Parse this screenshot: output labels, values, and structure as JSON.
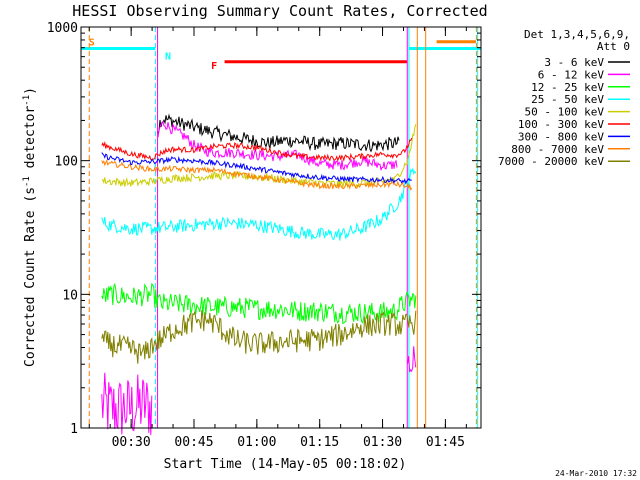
{
  "chart_data": {
    "type": "line",
    "title": "HESSI Observing Summary Count Rates, Corrected",
    "xlabel": "Start Time (14-May-05 00:18:02)",
    "ylabel_main": "Corrected Count Rate (s",
    "ylabel_exp1": "-1",
    "ylabel_mid": " detector",
    "ylabel_exp2": "-1",
    "ylabel_end": ")",
    "x_unit": "minutes after 00:00 UT",
    "xlim": [
      18.03,
      113.5
    ],
    "ylim": [
      1,
      1000
    ],
    "yscale": "log",
    "x_ticks": [
      {
        "value": 30,
        "label": "00:30"
      },
      {
        "value": 45,
        "label": "00:45"
      },
      {
        "value": 60,
        "label": "01:00"
      },
      {
        "value": 75,
        "label": "01:15"
      },
      {
        "value": 90,
        "label": "01:30"
      },
      {
        "value": 105,
        "label": "01:45"
      }
    ],
    "y_ticks": [
      {
        "value": 1,
        "label": "1"
      },
      {
        "value": 10,
        "label": "10"
      },
      {
        "value": 100,
        "label": "100"
      },
      {
        "value": 1000,
        "label": "1000"
      }
    ],
    "legend": {
      "header1": "Det 1,3,4,5,6,9,",
      "header2": "Att 0",
      "position": "right"
    },
    "series": [
      {
        "name": "3 - 6 keV",
        "color": "#000000",
        "noise": 0.05,
        "x": [
          36.4,
          37,
          38,
          40,
          45,
          50,
          55,
          60,
          63,
          67,
          70,
          75,
          80,
          85,
          88,
          90,
          92,
          94
        ],
        "y": [
          170,
          200,
          205,
          198,
          178,
          162,
          150,
          140,
          135,
          142,
          140,
          132,
          135,
          132,
          130,
          132,
          134,
          136
        ]
      },
      {
        "name": "6 - 12 keV",
        "color": "#ff00ff",
        "noise": 0.04,
        "x": [
          36.4,
          37,
          38,
          40,
          43,
          45,
          48,
          50,
          55,
          60,
          65,
          70,
          75,
          80,
          85,
          88,
          90,
          92,
          93.5
        ],
        "y": [
          150,
          185,
          190,
          170,
          150,
          130,
          118,
          115,
          115,
          110,
          108,
          110,
          95,
          93,
          100,
          95,
          92,
          92,
          95
        ]
      },
      {
        "name": "12 - 25 keV",
        "color": "#00ff00",
        "noise": 0.08,
        "x": [
          23,
          25,
          30,
          35,
          37,
          40,
          45,
          50,
          55,
          60,
          65,
          70,
          75,
          80,
          85,
          90,
          93,
          95,
          98
        ],
        "y": [
          9.5,
          10,
          9.5,
          10,
          8.5,
          8.5,
          8.3,
          8.0,
          8.0,
          7.8,
          7.8,
          7.5,
          7.5,
          7.3,
          7.3,
          7.3,
          7.5,
          8.5,
          9.5
        ]
      },
      {
        "name": "25 - 50 keV",
        "color": "#00ffff",
        "noise": 0.05,
        "x": [
          23,
          25,
          30,
          35,
          40,
          45,
          50,
          55,
          60,
          65,
          70,
          75,
          80,
          85,
          90,
          94,
          96,
          98
        ],
        "y": [
          35,
          33,
          31,
          31,
          32,
          33,
          34,
          34,
          33,
          31,
          29,
          28,
          28,
          31,
          37,
          50,
          70,
          90
        ]
      },
      {
        "name": "50 - 100 keV",
        "color": "#cccc00",
        "noise": 0.03,
        "x": [
          23,
          25,
          30,
          35,
          40,
          45,
          50,
          55,
          60,
          65,
          70,
          75,
          80,
          85,
          90,
          93,
          96,
          98
        ],
        "y": [
          71,
          70,
          68,
          70,
          74,
          75,
          77,
          77,
          76,
          73,
          70,
          68,
          67,
          68,
          70,
          72,
          100,
          190
        ]
      },
      {
        "name": "100 - 300 keV",
        "color": "#ff0000",
        "noise": 0.02,
        "x": [
          23,
          25,
          30,
          35,
          38,
          40,
          45,
          50,
          55,
          60,
          65,
          70,
          75,
          80,
          85,
          90,
          93,
          95,
          97
        ],
        "y": [
          132,
          126,
          112,
          105,
          118,
          122,
          120,
          128,
          130,
          125,
          115,
          108,
          105,
          105,
          108,
          112,
          110,
          115,
          145
        ]
      },
      {
        "name": "300 - 800 keV",
        "color": "#0000ff",
        "noise": 0.02,
        "x": [
          23,
          25,
          30,
          35,
          40,
          45,
          50,
          55,
          60,
          65,
          70,
          75,
          80,
          85,
          90,
          93,
          95,
          97
        ],
        "y": [
          110,
          105,
          97,
          98,
          102,
          100,
          96,
          92,
          87,
          82,
          78,
          75,
          73,
          72,
          72,
          71,
          70,
          70
        ]
      },
      {
        "name": "800 - 7000 keV",
        "color": "#ff8000",
        "noise": 0.02,
        "x": [
          23,
          25,
          30,
          35,
          40,
          45,
          50,
          55,
          60,
          65,
          70,
          75,
          80,
          85,
          90,
          93,
          95,
          97
        ],
        "y": [
          98,
          95,
          90,
          86,
          87,
          85,
          85,
          80,
          76,
          72,
          68,
          65,
          64,
          65,
          66,
          67,
          65,
          63
        ]
      },
      {
        "name": "7000 - 20000 keV",
        "color": "#808000",
        "noise": 0.09,
        "x": [
          23,
          25,
          30,
          33,
          35,
          38,
          40,
          45,
          48,
          50,
          55,
          60,
          65,
          70,
          75,
          80,
          85,
          90,
          92,
          95,
          98
        ],
        "y": [
          4.5,
          4.2,
          3.9,
          3.5,
          4.2,
          4.8,
          5.5,
          6.2,
          6.5,
          6.0,
          4.5,
          4.2,
          4.4,
          4.5,
          4.6,
          5.0,
          5.8,
          6.0,
          6.0,
          5.8,
          6.2
        ]
      }
    ],
    "extra_segments": [
      {
        "color": "#ff00ff",
        "noise": 0.25,
        "x": [
          23,
          25,
          30,
          33,
          35
        ],
        "y": [
          1.5,
          1.4,
          1.4,
          1.5,
          1.4
        ]
      },
      {
        "color": "#ff00ff",
        "noise": 0.12,
        "x": [
          96,
          97,
          98
        ],
        "y": [
          3.2,
          2.8,
          3.8
        ]
      }
    ],
    "annotations": [
      {
        "label": "S",
        "color": "#ff8000",
        "x": 20.6,
        "y": 780
      },
      {
        "label": "N",
        "color": "#00ffff",
        "x": 38.8,
        "y": 610
      },
      {
        "label": "F",
        "color": "#ff0000",
        "x": 49.8,
        "y": 520
      }
    ],
    "bars": [
      {
        "color": "#00ffff",
        "x1": 18.03,
        "x2": 35.8,
        "y": 690
      },
      {
        "color": "#ff0000",
        "x1": 52.3,
        "x2": 95.9,
        "y": 550
      },
      {
        "color": "#00ffff",
        "x1": 96.3,
        "x2": 113.5,
        "y": 690
      },
      {
        "color": "#ff8000",
        "x1": 102.9,
        "x2": 112.3,
        "y": 775
      }
    ],
    "vlines": [
      {
        "x": 20.0,
        "color": "#ff8000",
        "dashed": true
      },
      {
        "x": 35.8,
        "color": "#00ffff",
        "dashed": true
      },
      {
        "x": 36.3,
        "color": "#ff00ff",
        "dashed": false
      },
      {
        "x": 95.9,
        "color": "#ff00ff",
        "dashed": false
      },
      {
        "x": 96.3,
        "color": "#00ffff",
        "dashed": false
      },
      {
        "x": 98.3,
        "color": "#ff8000",
        "dashed": false
      },
      {
        "x": 100.3,
        "color": "#ff8000",
        "dashed": false
      },
      {
        "x": 112.4,
        "color": "#ff8000",
        "dashed": true
      },
      {
        "x": 112.7,
        "color": "#00ffff",
        "dashed": false
      }
    ]
  },
  "footer": {
    "timestamp": "24-Mar-2010 17:32"
  }
}
